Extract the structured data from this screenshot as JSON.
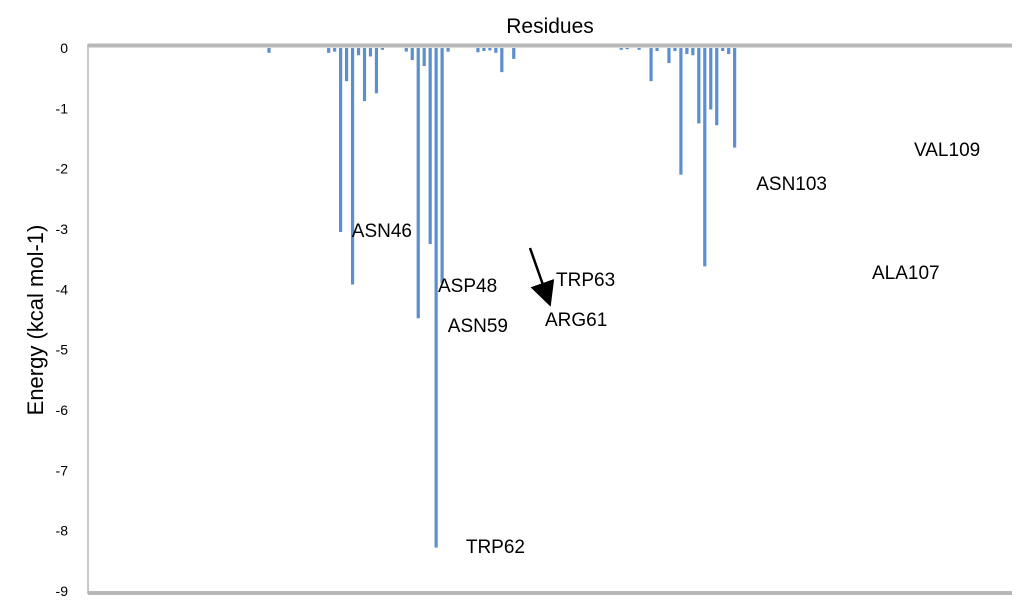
{
  "chart_data": {
    "type": "bar",
    "title": "Residues",
    "xlabel": "",
    "ylabel": "Energy (kcal mol-1)",
    "ylim": [
      -9,
      0
    ],
    "yticks": [
      "0",
      "-1",
      "-2",
      "-3",
      "-4",
      "-5",
      "-6",
      "-7",
      "-8",
      "-9"
    ],
    "bar_color": "#5b8fd0",
    "grid": false,
    "legend": "none",
    "residue_range": [
      1,
      120
    ],
    "values": [
      0,
      0,
      0,
      0,
      0,
      0,
      0,
      0,
      0,
      0,
      0,
      0,
      0,
      0,
      0,
      0,
      0,
      0,
      0,
      0,
      0,
      0,
      0,
      0,
      0,
      0,
      0,
      0,
      0,
      0,
      0,
      0,
      0,
      -0.08,
      0,
      0,
      0,
      0,
      0,
      0,
      0,
      0,
      0,
      -0.08,
      -0.06,
      -3.05,
      -0.55,
      -3.92,
      -0.12,
      -0.88,
      -0.14,
      -0.75,
      -0.03,
      0,
      0,
      0,
      -0.06,
      -0.2,
      -4.48,
      -0.3,
      -3.25,
      -8.28,
      -3.9,
      -0.06,
      0,
      0,
      0,
      0,
      -0.07,
      -0.05,
      -0.04,
      -0.08,
      -0.4,
      0,
      -0.18,
      0,
      0,
      0,
      0,
      0,
      0,
      0,
      0,
      0,
      0,
      0,
      0,
      0,
      0,
      0,
      0,
      0,
      -0.03,
      -0.02,
      0,
      -0.03,
      0,
      -0.55,
      -0.05,
      0,
      -0.25,
      -0.05,
      -2.1,
      -0.1,
      -0.12,
      -1.25,
      -3.62,
      -1.02,
      -1.28,
      -0.05,
      -0.1,
      -1.65,
      0,
      0,
      0,
      0,
      0,
      0,
      0,
      0
    ],
    "annotations": [
      {
        "label": "ASN46",
        "residue": 46
      },
      {
        "label": "ASP48",
        "residue": 48
      },
      {
        "label": "ASN59",
        "residue": 59
      },
      {
        "label": "TRP62",
        "residue": 62
      },
      {
        "label": "TRP63",
        "residue": 63
      },
      {
        "label": "ARG61",
        "residue": 61
      },
      {
        "label": "ASN103",
        "residue": 103
      },
      {
        "label": "ALA107",
        "residue": 107
      },
      {
        "label": "VAL109",
        "residue": 109
      }
    ]
  }
}
